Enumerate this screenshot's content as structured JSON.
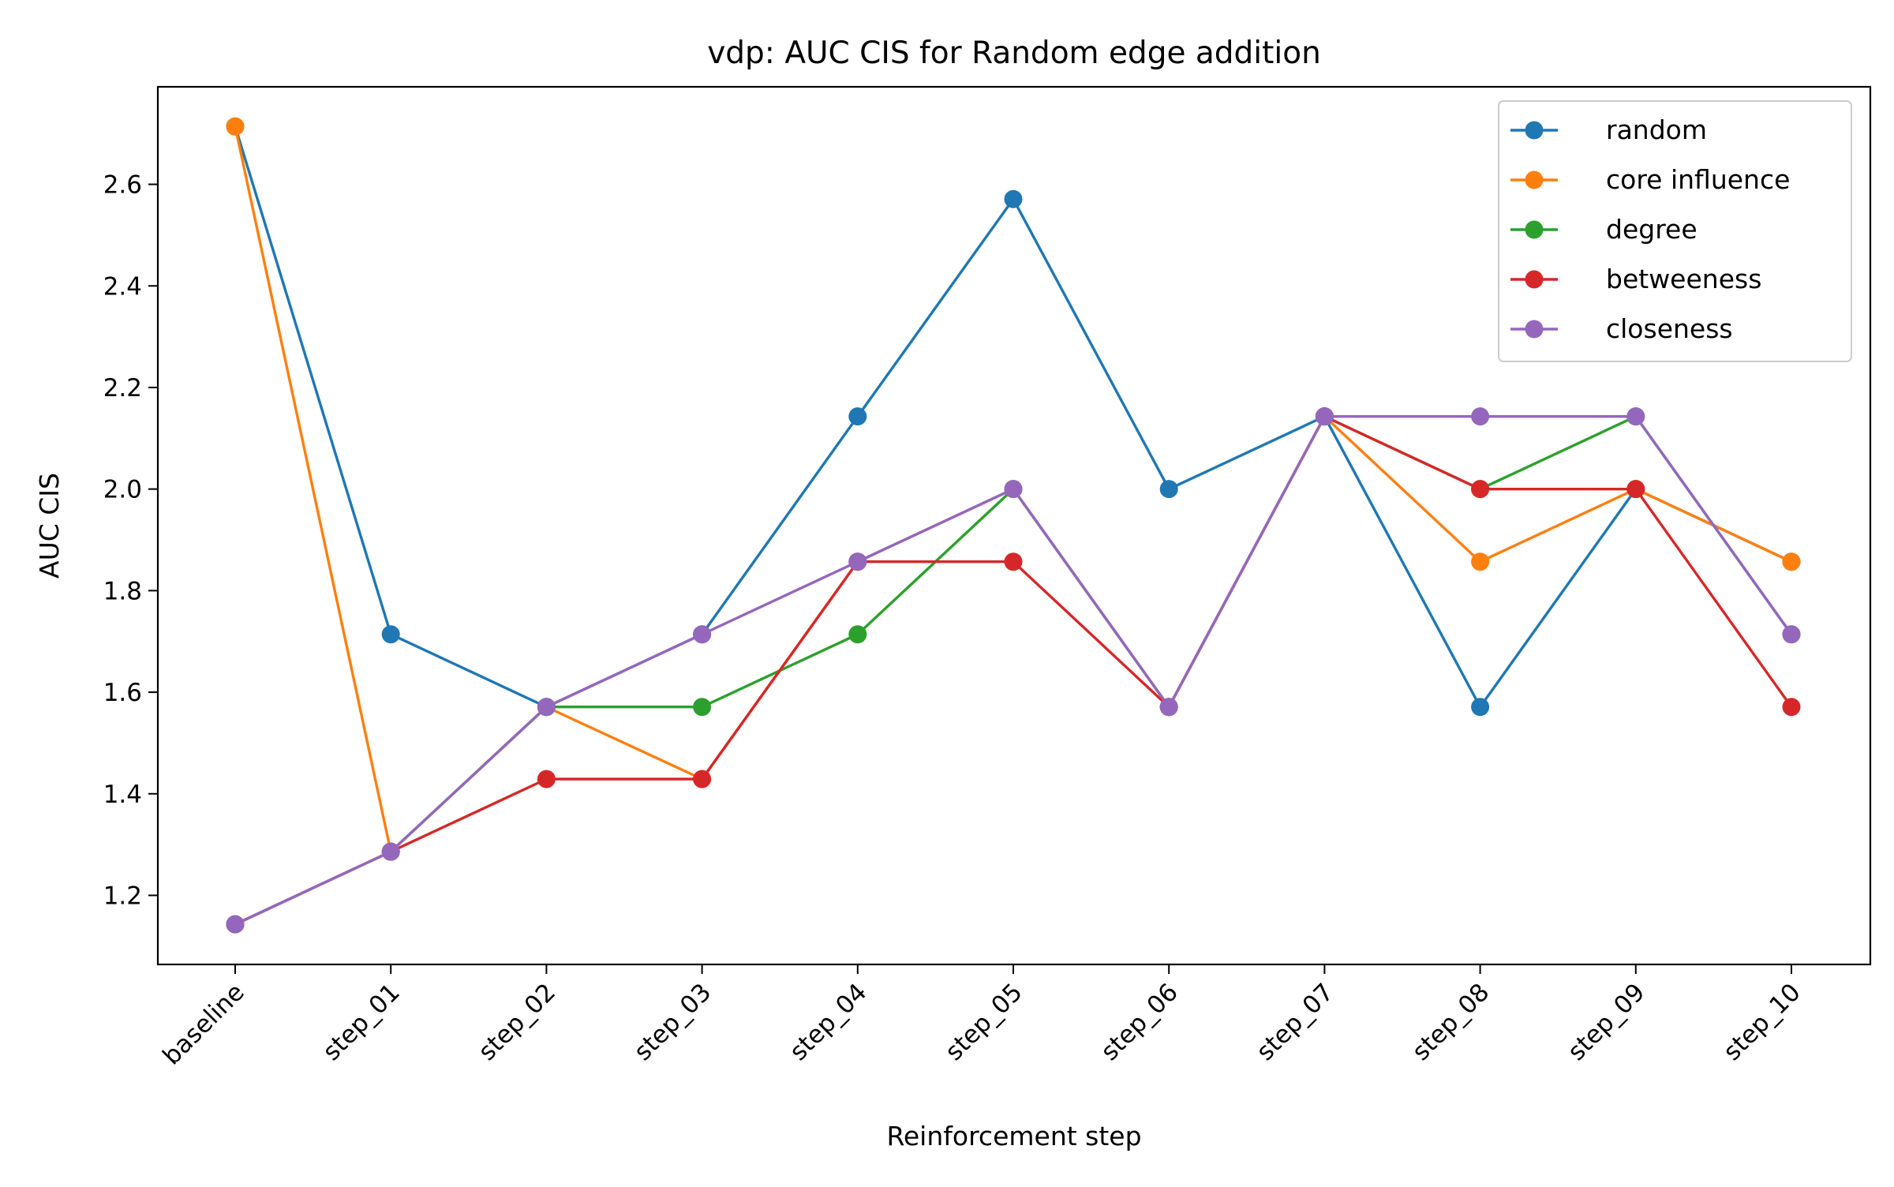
{
  "chart_data": {
    "type": "line",
    "title": "vdp: AUC CIS for Random edge addition",
    "xlabel": "Reinforcement step",
    "ylabel": "AUC CIS",
    "categories": [
      "baseline",
      "step_01",
      "step_02",
      "step_03",
      "step_04",
      "step_05",
      "step_06",
      "step_07",
      "step_08",
      "step_09",
      "step_10"
    ],
    "ylim": [
      1.064,
      2.792
    ],
    "yticks": [
      1.2,
      1.4,
      1.6,
      1.8,
      2.0,
      2.2,
      2.4,
      2.6
    ],
    "ytick_labels": [
      "1.2",
      "1.4",
      "1.6",
      "1.8",
      "2.0",
      "2.2",
      "2.4",
      "2.6"
    ],
    "grid": false,
    "legend_position": "top-right",
    "series": [
      {
        "name": "random",
        "color": "#1f77b4",
        "values": [
          2.714,
          1.714,
          1.571,
          1.714,
          2.143,
          2.571,
          2.0,
          2.143,
          1.571,
          2.0,
          1.857
        ]
      },
      {
        "name": "core influence",
        "color": "#ff7f0e",
        "values": [
          2.714,
          1.286,
          1.571,
          1.429,
          1.857,
          2.0,
          1.571,
          2.143,
          1.857,
          2.0,
          1.857
        ]
      },
      {
        "name": "degree",
        "color": "#2ca02c",
        "values": [
          1.143,
          1.286,
          1.571,
          1.571,
          1.714,
          2.0,
          1.571,
          2.143,
          2.0,
          2.143,
          1.714
        ]
      },
      {
        "name": "betweeness",
        "color": "#d62728",
        "values": [
          1.143,
          1.286,
          1.429,
          1.429,
          1.857,
          1.857,
          1.571,
          2.143,
          2.0,
          2.0,
          1.571
        ]
      },
      {
        "name": "closeness",
        "color": "#9467bd",
        "values": [
          1.143,
          1.286,
          1.571,
          1.714,
          1.857,
          2.0,
          1.571,
          2.143,
          2.143,
          2.143,
          1.714
        ]
      }
    ]
  }
}
